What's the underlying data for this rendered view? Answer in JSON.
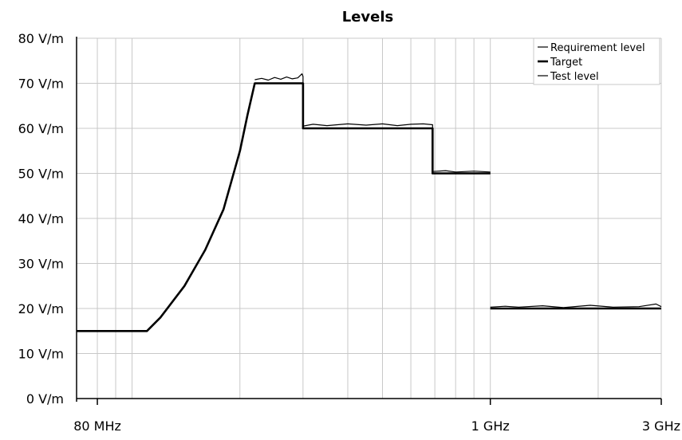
{
  "chart_data": {
    "type": "line",
    "title": "Levels",
    "xlabel": "",
    "ylabel": "",
    "x_scale": "log",
    "x_unit": "MHz",
    "xlim": [
      70,
      3000
    ],
    "ylim": [
      0,
      80
    ],
    "grid": true,
    "legend_position": "top-right",
    "y_ticks": [
      {
        "value": 0,
        "label": "0 V/m"
      },
      {
        "value": 10,
        "label": "10 V/m"
      },
      {
        "value": 20,
        "label": "20 V/m"
      },
      {
        "value": 30,
        "label": "30 V/m"
      },
      {
        "value": 40,
        "label": "40 V/m"
      },
      {
        "value": 50,
        "label": "50 V/m"
      },
      {
        "value": 60,
        "label": "60 V/m"
      },
      {
        "value": 70,
        "label": "70 V/m"
      },
      {
        "value": 80,
        "label": "80 V/m"
      }
    ],
    "x_tick_labels": [
      {
        "value": 80,
        "label": "80 MHz"
      },
      {
        "value": 1000,
        "label": "1 GHz"
      },
      {
        "value": 3000,
        "label": "3 GHz"
      }
    ],
    "x_grid": [
      80,
      90,
      100,
      200,
      300,
      400,
      500,
      600,
      700,
      800,
      900,
      1000,
      2000,
      3000
    ],
    "series": [
      {
        "name": "Requirement level",
        "color": "#000000",
        "style": "thin",
        "segments": [
          [
            [
              70,
              15
            ],
            [
              110,
              15
            ],
            [
              120,
              18
            ],
            [
              140,
              25
            ],
            [
              160,
              33
            ],
            [
              180,
              42
            ],
            [
              200,
              55
            ],
            [
              210,
              63
            ],
            [
              220,
              70
            ],
            [
              300,
              70
            ],
            [
              300,
              60
            ],
            [
              690,
              60
            ],
            [
              690,
              50
            ],
            [
              1000,
              50
            ]
          ],
          [
            [
              1000,
              20
            ],
            [
              3000,
              20
            ]
          ]
        ]
      },
      {
        "name": "Target",
        "color": "#000000",
        "style": "thick",
        "segments": [
          [
            [
              70,
              15
            ],
            [
              110,
              15
            ],
            [
              120,
              18
            ],
            [
              140,
              25
            ],
            [
              160,
              33
            ],
            [
              180,
              42
            ],
            [
              200,
              55
            ],
            [
              210,
              63
            ],
            [
              220,
              70
            ],
            [
              300,
              70
            ],
            [
              300,
              60
            ],
            [
              690,
              60
            ],
            [
              690,
              50
            ],
            [
              1000,
              50
            ]
          ],
          [
            [
              1000,
              20
            ],
            [
              3000,
              20
            ]
          ]
        ]
      },
      {
        "name": "Test level",
        "color": "#000000",
        "style": "thin",
        "segments": [
          [
            [
              220,
              70.8
            ],
            [
              230,
              71.1
            ],
            [
              240,
              70.7
            ],
            [
              250,
              71.3
            ],
            [
              260,
              70.9
            ],
            [
              270,
              71.4
            ],
            [
              280,
              71.0
            ],
            [
              290,
              71.2
            ],
            [
              298,
              72.1
            ],
            [
              300,
              71.5
            ],
            [
              300,
              60.5
            ],
            [
              320,
              60.9
            ],
            [
              350,
              60.6
            ],
            [
              400,
              61.0
            ],
            [
              450,
              60.7
            ],
            [
              500,
              61.0
            ],
            [
              550,
              60.6
            ],
            [
              600,
              60.9
            ],
            [
              650,
              61.0
            ],
            [
              690,
              60.8
            ],
            [
              690,
              50.4
            ],
            [
              750,
              50.6
            ],
            [
              800,
              50.3
            ],
            [
              900,
              50.5
            ],
            [
              1000,
              50.3
            ]
          ],
          [
            [
              1000,
              20.3
            ],
            [
              1100,
              20.5
            ],
            [
              1200,
              20.3
            ],
            [
              1400,
              20.6
            ],
            [
              1600,
              20.2
            ],
            [
              1900,
              20.7
            ],
            [
              2200,
              20.3
            ],
            [
              2600,
              20.4
            ],
            [
              2900,
              21.0
            ],
            [
              3000,
              20.4
            ]
          ]
        ]
      }
    ]
  }
}
